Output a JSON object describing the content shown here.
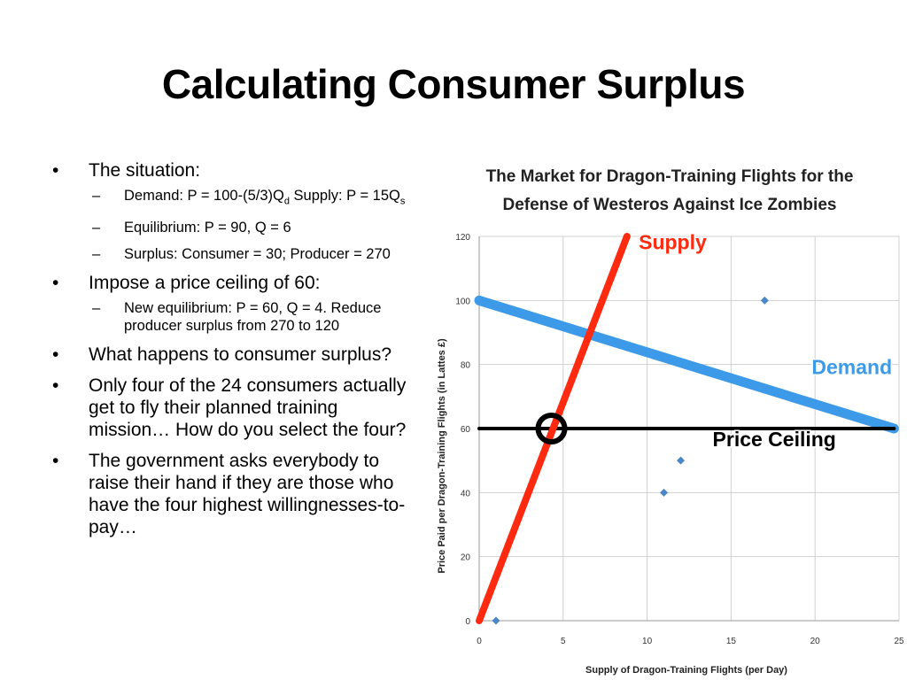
{
  "slide": {
    "title": "Calculating Consumer Surplus",
    "bullets": [
      {
        "text": "The situation:",
        "subs": [
          {
            "pre": "Demand: P = 100-(5/3)Q",
            "sub1": "d",
            "mid": " Supply: P = 15Q",
            "sub2": "s"
          },
          {
            "text": "Equilibrium: P = 90, Q = 6"
          },
          {
            "text": "Surplus: Consumer = 30; Producer = 270"
          }
        ]
      },
      {
        "text": "Impose a price ceiling of 60:",
        "subs": [
          {
            "text": "New equilibrium: P = 60, Q = 4. Reduce producer surplus from 270 to 120"
          }
        ]
      },
      {
        "text": "What happens to consumer surplus?"
      },
      {
        "text": "Only four of the 24 consumers actually get to fly their planned training mission… How do you select the four?"
      },
      {
        "text": "The government asks everybody to raise their hand if they are those who have the four highest willingnesses-to-pay…"
      }
    ]
  },
  "chart_data": {
    "type": "scatter",
    "title": "The Market for Dragon-Training Flights for the Defense of Westeros Against Ice Zombies",
    "xlabel": "Supply of Dragon-Training Flights (per Day)",
    "ylabel": "Price Paid per Dragon-Training Flights (in Lattes £)",
    "xlim": [
      0,
      25
    ],
    "ylim": [
      0,
      120
    ],
    "xticks": [
      "0",
      "5",
      "10",
      "15",
      "20",
      "25"
    ],
    "yticks": [
      "0",
      "20",
      "40",
      "60",
      "80",
      "100",
      "120"
    ],
    "grid": true,
    "lines": [
      {
        "name": "Supply",
        "color": "#ff2a10",
        "points": [
          [
            0,
            0
          ],
          [
            8.8,
            120
          ]
        ]
      },
      {
        "name": "Demand",
        "color": "#3d9ae8",
        "points": [
          [
            0,
            100
          ],
          [
            24.7,
            60
          ]
        ]
      },
      {
        "name": "Price Ceiling",
        "color": "#000000",
        "points": [
          [
            0,
            60
          ],
          [
            24.7,
            60
          ]
        ]
      }
    ],
    "points": [
      [
        1,
        0
      ],
      [
        11,
        40
      ],
      [
        12,
        50
      ],
      [
        17,
        100
      ]
    ],
    "point_color": "#4a86c8",
    "highlight": {
      "x": 4.3,
      "y": 60
    }
  }
}
